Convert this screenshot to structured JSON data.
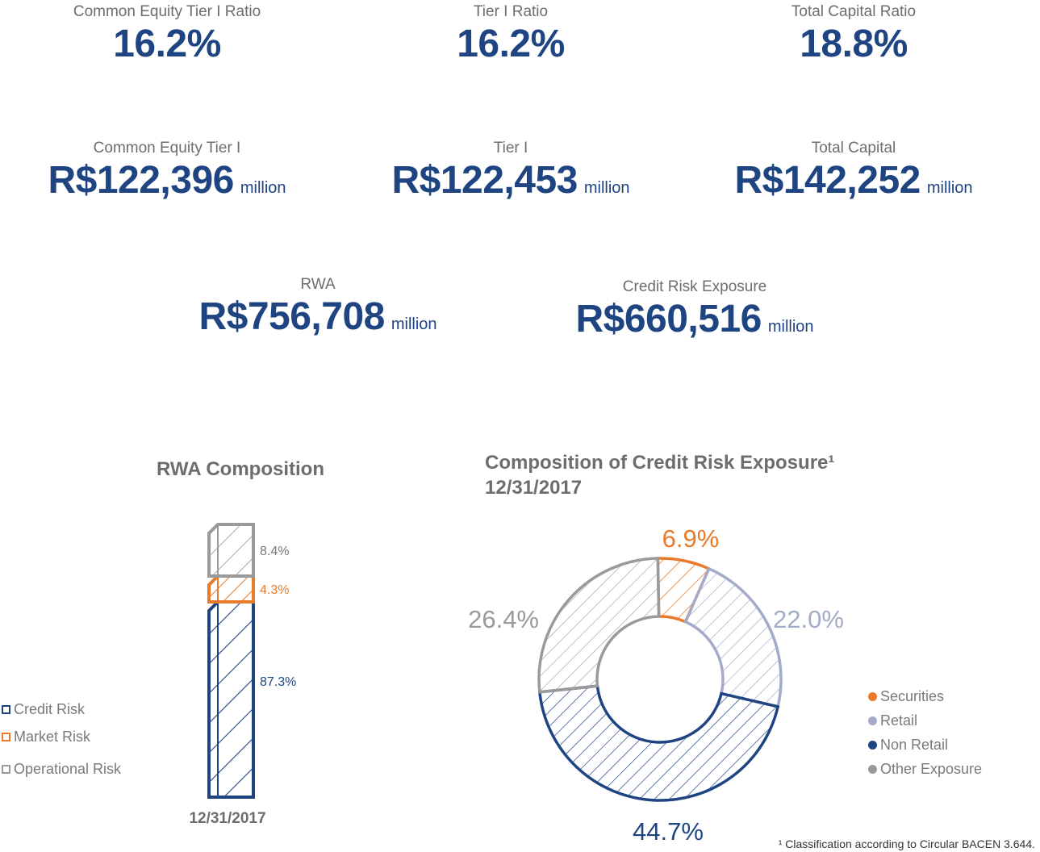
{
  "metrics": {
    "cet1_ratio": {
      "label": "Common Equity Tier I Ratio",
      "value": "16.2%"
    },
    "tier1_ratio": {
      "label": "Tier I Ratio",
      "value": "16.2%"
    },
    "total_capital_ratio": {
      "label": "Total Capital Ratio",
      "value": "18.8%"
    },
    "cet1": {
      "label": "Common Equity Tier I",
      "value": "R$122,396",
      "unit": "million"
    },
    "tier1": {
      "label": "Tier I",
      "value": "R$122,453",
      "unit": "million"
    },
    "total_capital": {
      "label": "Total Capital",
      "value": "R$142,252",
      "unit": "million"
    },
    "rwa": {
      "label": "RWA",
      "value": "R$756,708",
      "unit": "million"
    },
    "credit_risk_exposure": {
      "label": "Credit Risk Exposure",
      "value": "R$660,516",
      "unit": "million"
    }
  },
  "colors": {
    "navy": "#1f4482",
    "orange": "#e87a2a",
    "gray": "#9a9a9a",
    "lavender": "#a3abc9",
    "label_gray": "#6d6d6d"
  },
  "chart_data": [
    {
      "type": "bar",
      "stacked": true,
      "title": "RWA Composition",
      "categories": [
        "12/31/2017"
      ],
      "series": [
        {
          "name": "Credit Risk",
          "values": [
            87.3
          ],
          "label": "87.3%",
          "color": "#1f4482"
        },
        {
          "name": "Market Risk",
          "values": [
            4.3
          ],
          "label": "4.3%",
          "color": "#e87a2a"
        },
        {
          "name": "Operational Risk",
          "values": [
            8.4
          ],
          "label": "8.4%",
          "color": "#9a9a9a"
        }
      ],
      "ylim": [
        0,
        100
      ],
      "legend": "bottom-left"
    },
    {
      "type": "pie",
      "donut": true,
      "title": "Composition of Credit Risk Exposure¹",
      "subtitle": "12/31/2017",
      "slices": [
        {
          "name": "Securities",
          "value": 6.9,
          "label": "6.9%",
          "color": "#e87a2a"
        },
        {
          "name": "Retail",
          "value": 22.0,
          "label": "22.0%",
          "color": "#a3abc9"
        },
        {
          "name": "Non Retail",
          "value": 44.7,
          "label": "44.7%",
          "color": "#1f4482"
        },
        {
          "name": "Other Exposure",
          "value": 26.4,
          "label": "26.4%",
          "color": "#9a9a9a"
        }
      ],
      "legend": "right"
    }
  ],
  "footnote": "¹ Classification according to Circular BACEN 3.644."
}
